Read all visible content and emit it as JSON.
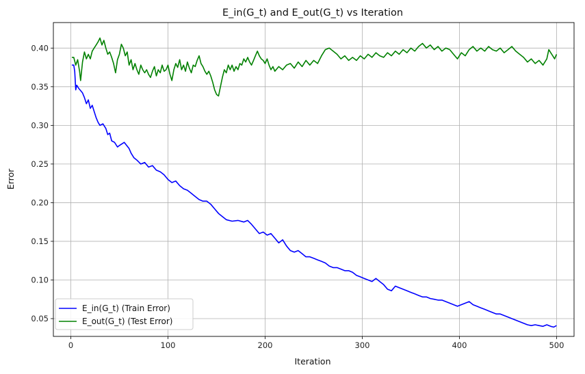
{
  "chart_data": {
    "type": "line",
    "title": "E_in(G_t) and E_out(G_t) vs Iteration",
    "xlabel": "Iteration",
    "ylabel": "Error",
    "xlim": [
      -18,
      518
    ],
    "ylim": [
      0.027,
      0.433
    ],
    "xticks": [
      0,
      100,
      200,
      300,
      400,
      500
    ],
    "yticks": [
      0.05,
      0.1,
      0.15,
      0.2,
      0.25,
      0.3,
      0.35,
      0.4
    ],
    "ytick_labels": [
      "0.05",
      "0.10",
      "0.15",
      "0.20",
      "0.25",
      "0.30",
      "0.35",
      "0.40"
    ],
    "grid": true,
    "legend_position": "lower-left",
    "series": [
      {
        "name": "E_in(G_t) (Train Error)",
        "color": "#0000ff",
        "points": [
          [
            1,
            0.378
          ],
          [
            3,
            0.378
          ],
          [
            4,
            0.37
          ],
          [
            5,
            0.346
          ],
          [
            6,
            0.352
          ],
          [
            8,
            0.348
          ],
          [
            10,
            0.345
          ],
          [
            12,
            0.342
          ],
          [
            14,
            0.336
          ],
          [
            16,
            0.328
          ],
          [
            18,
            0.333
          ],
          [
            20,
            0.322
          ],
          [
            22,
            0.326
          ],
          [
            24,
            0.318
          ],
          [
            26,
            0.31
          ],
          [
            28,
            0.304
          ],
          [
            30,
            0.3
          ],
          [
            33,
            0.302
          ],
          [
            36,
            0.296
          ],
          [
            38,
            0.288
          ],
          [
            40,
            0.29
          ],
          [
            42,
            0.28
          ],
          [
            45,
            0.278
          ],
          [
            48,
            0.272
          ],
          [
            50,
            0.274
          ],
          [
            55,
            0.278
          ],
          [
            60,
            0.27
          ],
          [
            62,
            0.264
          ],
          [
            65,
            0.258
          ],
          [
            68,
            0.255
          ],
          [
            72,
            0.25
          ],
          [
            76,
            0.252
          ],
          [
            80,
            0.246
          ],
          [
            84,
            0.248
          ],
          [
            88,
            0.242
          ],
          [
            92,
            0.24
          ],
          [
            96,
            0.236
          ],
          [
            100,
            0.23
          ],
          [
            104,
            0.226
          ],
          [
            108,
            0.228
          ],
          [
            112,
            0.222
          ],
          [
            116,
            0.218
          ],
          [
            120,
            0.216
          ],
          [
            124,
            0.212
          ],
          [
            128,
            0.208
          ],
          [
            132,
            0.204
          ],
          [
            136,
            0.202
          ],
          [
            140,
            0.202
          ],
          [
            144,
            0.198
          ],
          [
            148,
            0.192
          ],
          [
            152,
            0.186
          ],
          [
            156,
            0.182
          ],
          [
            160,
            0.178
          ],
          [
            166,
            0.176
          ],
          [
            172,
            0.177
          ],
          [
            178,
            0.175
          ],
          [
            182,
            0.177
          ],
          [
            186,
            0.172
          ],
          [
            190,
            0.166
          ],
          [
            194,
            0.16
          ],
          [
            198,
            0.162
          ],
          [
            202,
            0.158
          ],
          [
            206,
            0.16
          ],
          [
            210,
            0.154
          ],
          [
            214,
            0.148
          ],
          [
            218,
            0.152
          ],
          [
            222,
            0.144
          ],
          [
            226,
            0.138
          ],
          [
            230,
            0.136
          ],
          [
            234,
            0.138
          ],
          [
            238,
            0.134
          ],
          [
            242,
            0.13
          ],
          [
            246,
            0.13
          ],
          [
            250,
            0.128
          ],
          [
            254,
            0.126
          ],
          [
            258,
            0.124
          ],
          [
            262,
            0.122
          ],
          [
            266,
            0.118
          ],
          [
            270,
            0.116
          ],
          [
            274,
            0.116
          ],
          [
            278,
            0.114
          ],
          [
            282,
            0.112
          ],
          [
            286,
            0.112
          ],
          [
            290,
            0.11
          ],
          [
            294,
            0.106
          ],
          [
            298,
            0.104
          ],
          [
            302,
            0.102
          ],
          [
            306,
            0.1
          ],
          [
            310,
            0.098
          ],
          [
            314,
            0.102
          ],
          [
            318,
            0.098
          ],
          [
            322,
            0.094
          ],
          [
            326,
            0.088
          ],
          [
            330,
            0.086
          ],
          [
            334,
            0.092
          ],
          [
            338,
            0.09
          ],
          [
            342,
            0.088
          ],
          [
            346,
            0.086
          ],
          [
            350,
            0.084
          ],
          [
            354,
            0.082
          ],
          [
            358,
            0.08
          ],
          [
            362,
            0.078
          ],
          [
            366,
            0.078
          ],
          [
            370,
            0.076
          ],
          [
            374,
            0.075
          ],
          [
            378,
            0.074
          ],
          [
            382,
            0.074
          ],
          [
            386,
            0.072
          ],
          [
            390,
            0.07
          ],
          [
            394,
            0.068
          ],
          [
            398,
            0.066
          ],
          [
            402,
            0.068
          ],
          [
            406,
            0.07
          ],
          [
            410,
            0.072
          ],
          [
            414,
            0.068
          ],
          [
            418,
            0.066
          ],
          [
            422,
            0.064
          ],
          [
            426,
            0.062
          ],
          [
            430,
            0.06
          ],
          [
            434,
            0.058
          ],
          [
            438,
            0.056
          ],
          [
            442,
            0.056
          ],
          [
            446,
            0.054
          ],
          [
            450,
            0.052
          ],
          [
            454,
            0.05
          ],
          [
            458,
            0.048
          ],
          [
            462,
            0.046
          ],
          [
            466,
            0.044
          ],
          [
            470,
            0.042
          ],
          [
            474,
            0.041
          ],
          [
            478,
            0.042
          ],
          [
            482,
            0.041
          ],
          [
            486,
            0.04
          ],
          [
            490,
            0.042
          ],
          [
            494,
            0.04
          ],
          [
            497,
            0.039
          ],
          [
            500,
            0.041
          ]
        ]
      },
      {
        "name": "E_out(G_t) (Test Error)",
        "color": "#008000",
        "points": [
          [
            1,
            0.388
          ],
          [
            3,
            0.388
          ],
          [
            5,
            0.378
          ],
          [
            7,
            0.385
          ],
          [
            9,
            0.37
          ],
          [
            10,
            0.358
          ],
          [
            12,
            0.382
          ],
          [
            14,
            0.395
          ],
          [
            16,
            0.386
          ],
          [
            18,
            0.392
          ],
          [
            20,
            0.386
          ],
          [
            22,
            0.396
          ],
          [
            24,
            0.4
          ],
          [
            26,
            0.404
          ],
          [
            28,
            0.408
          ],
          [
            30,
            0.413
          ],
          [
            32,
            0.404
          ],
          [
            34,
            0.41
          ],
          [
            36,
            0.4
          ],
          [
            38,
            0.392
          ],
          [
            40,
            0.395
          ],
          [
            42,
            0.388
          ],
          [
            44,
            0.38
          ],
          [
            46,
            0.368
          ],
          [
            48,
            0.385
          ],
          [
            50,
            0.392
          ],
          [
            52,
            0.405
          ],
          [
            54,
            0.4
          ],
          [
            56,
            0.39
          ],
          [
            58,
            0.395
          ],
          [
            60,
            0.378
          ],
          [
            62,
            0.385
          ],
          [
            64,
            0.372
          ],
          [
            66,
            0.38
          ],
          [
            68,
            0.372
          ],
          [
            70,
            0.366
          ],
          [
            72,
            0.378
          ],
          [
            74,
            0.372
          ],
          [
            76,
            0.368
          ],
          [
            78,
            0.372
          ],
          [
            80,
            0.366
          ],
          [
            82,
            0.362
          ],
          [
            84,
            0.37
          ],
          [
            86,
            0.376
          ],
          [
            88,
            0.364
          ],
          [
            90,
            0.372
          ],
          [
            92,
            0.368
          ],
          [
            94,
            0.378
          ],
          [
            96,
            0.37
          ],
          [
            98,
            0.372
          ],
          [
            100,
            0.378
          ],
          [
            102,
            0.366
          ],
          [
            104,
            0.358
          ],
          [
            106,
            0.372
          ],
          [
            108,
            0.38
          ],
          [
            110,
            0.375
          ],
          [
            112,
            0.385
          ],
          [
            114,
            0.372
          ],
          [
            116,
            0.378
          ],
          [
            118,
            0.37
          ],
          [
            120,
            0.382
          ],
          [
            122,
            0.374
          ],
          [
            124,
            0.368
          ],
          [
            126,
            0.378
          ],
          [
            128,
            0.376
          ],
          [
            130,
            0.384
          ],
          [
            132,
            0.39
          ],
          [
            134,
            0.38
          ],
          [
            136,
            0.376
          ],
          [
            138,
            0.37
          ],
          [
            140,
            0.366
          ],
          [
            142,
            0.37
          ],
          [
            144,
            0.364
          ],
          [
            146,
            0.356
          ],
          [
            148,
            0.346
          ],
          [
            150,
            0.34
          ],
          [
            152,
            0.338
          ],
          [
            154,
            0.35
          ],
          [
            156,
            0.362
          ],
          [
            158,
            0.372
          ],
          [
            160,
            0.368
          ],
          [
            162,
            0.378
          ],
          [
            164,
            0.372
          ],
          [
            166,
            0.378
          ],
          [
            168,
            0.37
          ],
          [
            170,
            0.376
          ],
          [
            172,
            0.372
          ],
          [
            174,
            0.38
          ],
          [
            176,
            0.378
          ],
          [
            178,
            0.386
          ],
          [
            180,
            0.382
          ],
          [
            182,
            0.388
          ],
          [
            184,
            0.382
          ],
          [
            186,
            0.378
          ],
          [
            188,
            0.384
          ],
          [
            190,
            0.39
          ],
          [
            192,
            0.396
          ],
          [
            194,
            0.39
          ],
          [
            196,
            0.386
          ],
          [
            198,
            0.384
          ],
          [
            200,
            0.38
          ],
          [
            202,
            0.386
          ],
          [
            204,
            0.378
          ],
          [
            206,
            0.372
          ],
          [
            208,
            0.376
          ],
          [
            210,
            0.37
          ],
          [
            214,
            0.376
          ],
          [
            218,
            0.372
          ],
          [
            222,
            0.378
          ],
          [
            226,
            0.38
          ],
          [
            230,
            0.374
          ],
          [
            234,
            0.382
          ],
          [
            238,
            0.376
          ],
          [
            242,
            0.384
          ],
          [
            246,
            0.378
          ],
          [
            250,
            0.384
          ],
          [
            254,
            0.38
          ],
          [
            258,
            0.39
          ],
          [
            262,
            0.398
          ],
          [
            266,
            0.4
          ],
          [
            270,
            0.396
          ],
          [
            274,
            0.392
          ],
          [
            278,
            0.386
          ],
          [
            282,
            0.39
          ],
          [
            286,
            0.384
          ],
          [
            290,
            0.388
          ],
          [
            294,
            0.384
          ],
          [
            298,
            0.39
          ],
          [
            302,
            0.386
          ],
          [
            306,
            0.392
          ],
          [
            310,
            0.388
          ],
          [
            314,
            0.394
          ],
          [
            318,
            0.39
          ],
          [
            322,
            0.388
          ],
          [
            326,
            0.394
          ],
          [
            330,
            0.39
          ],
          [
            334,
            0.396
          ],
          [
            338,
            0.392
          ],
          [
            342,
            0.398
          ],
          [
            346,
            0.394
          ],
          [
            350,
            0.4
          ],
          [
            354,
            0.396
          ],
          [
            358,
            0.402
          ],
          [
            362,
            0.406
          ],
          [
            366,
            0.4
          ],
          [
            370,
            0.404
          ],
          [
            374,
            0.398
          ],
          [
            378,
            0.402
          ],
          [
            382,
            0.396
          ],
          [
            386,
            0.4
          ],
          [
            390,
            0.398
          ],
          [
            394,
            0.392
          ],
          [
            398,
            0.386
          ],
          [
            402,
            0.394
          ],
          [
            406,
            0.39
          ],
          [
            410,
            0.398
          ],
          [
            414,
            0.402
          ],
          [
            418,
            0.396
          ],
          [
            422,
            0.4
          ],
          [
            426,
            0.396
          ],
          [
            430,
            0.402
          ],
          [
            434,
            0.398
          ],
          [
            438,
            0.396
          ],
          [
            442,
            0.4
          ],
          [
            446,
            0.394
          ],
          [
            450,
            0.398
          ],
          [
            454,
            0.402
          ],
          [
            458,
            0.396
          ],
          [
            462,
            0.392
          ],
          [
            466,
            0.388
          ],
          [
            470,
            0.382
          ],
          [
            474,
            0.386
          ],
          [
            478,
            0.38
          ],
          [
            482,
            0.384
          ],
          [
            486,
            0.378
          ],
          [
            490,
            0.386
          ],
          [
            492,
            0.398
          ],
          [
            494,
            0.394
          ],
          [
            496,
            0.39
          ],
          [
            498,
            0.386
          ],
          [
            500,
            0.392
          ]
        ]
      }
    ]
  }
}
